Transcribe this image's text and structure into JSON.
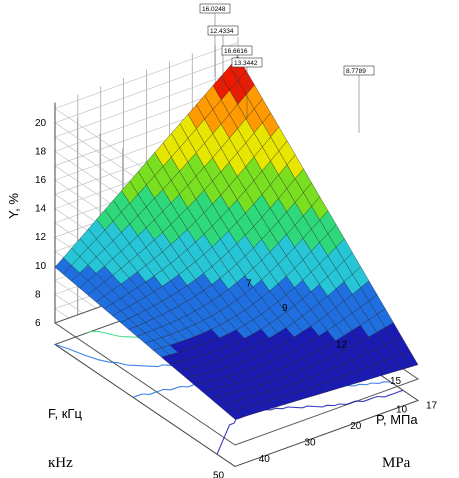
{
  "chart_data": {
    "type": "surface3d",
    "zlabel": "Y, %",
    "xlabel": "F, кГц",
    "ylabel": "P, МПа",
    "z_ticks": [
      "6",
      "8",
      "10",
      "12",
      "14",
      "16",
      "18",
      "20"
    ],
    "zlim": [
      6,
      20
    ],
    "f_ticks": [
      "50",
      "40",
      "30",
      "20",
      "10"
    ],
    "flim": [
      10,
      50
    ],
    "p_ticks": [
      "7",
      "9",
      "12",
      "15",
      "17"
    ],
    "plim": [
      7,
      17
    ],
    "surface_corners": [
      {
        "f": 10,
        "p": 7,
        "y": 20.0
      },
      {
        "f": 50,
        "p": 7,
        "y": 9.9
      },
      {
        "f": 10,
        "p": 17,
        "y": 7.0
      },
      {
        "f": 50,
        "p": 17,
        "y": 7.8
      }
    ],
    "callouts": [
      "16.0248",
      "12.4334",
      "16.6616",
      "13.3442",
      "8.7789"
    ],
    "colormap": [
      "#1a1ab4",
      "#1f6fe0",
      "#26c6d6",
      "#2dd97a",
      "#78e020",
      "#e6e600",
      "#ff9a00",
      "#ee1a00"
    ],
    "contours": true,
    "grid": true
  },
  "captions": {
    "left": "кHz",
    "right": "MPa"
  }
}
